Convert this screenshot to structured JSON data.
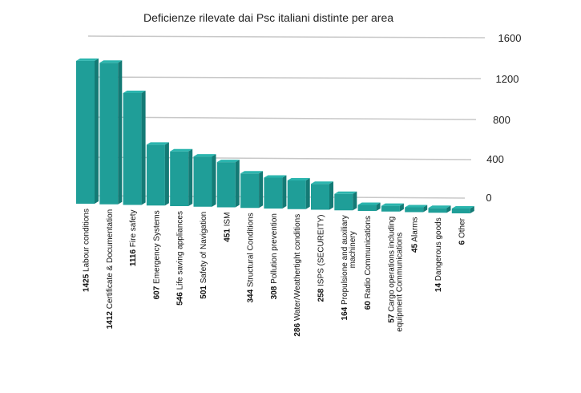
{
  "chart_data": {
    "type": "bar",
    "title": "Deficienze rilevate dai Psc italiani distinte per area",
    "xlabel": "",
    "ylabel": "",
    "ylim": [
      0,
      1600
    ],
    "yticks": [
      "1600",
      "1200",
      "800",
      "400",
      "0"
    ],
    "grid": true,
    "legend": "none",
    "bar_color": "#1f9e98",
    "bar_top_color": "#2bb5ae",
    "bar_side_color": "#147a75",
    "categories": [
      {
        "num": "1425",
        "label": "Labour conditions"
      },
      {
        "num": "1412",
        "label": "Certificate & Documentation"
      },
      {
        "num": "1116",
        "label": "Fire safety"
      },
      {
        "num": "607",
        "label": "Emergency Systems"
      },
      {
        "num": "546",
        "label": "Life saving appliances"
      },
      {
        "num": "501",
        "label": "Safety of Navigation"
      },
      {
        "num": "451",
        "label": "ISM"
      },
      {
        "num": "344",
        "label": "Structural Conditions"
      },
      {
        "num": "308",
        "label": "Pollution prevention"
      },
      {
        "num": "286",
        "label": "Water/Weathertight conditions"
      },
      {
        "num": "258",
        "label": "ISPS (SECUREITY)"
      },
      {
        "num": "164",
        "label": "Propulsione  and  auxiliary",
        "label2": "machinery"
      },
      {
        "num": "60",
        "label": "Radio Communications"
      },
      {
        "num": "57",
        "label": "Cargo operations including",
        "label2": "equipment Communications"
      },
      {
        "num": "45",
        "label": "Alarms"
      },
      {
        "num": "14",
        "label": "Dangerous goods"
      },
      {
        "num": "6",
        "label": "Other"
      }
    ],
    "values": [
      1425,
      1412,
      1116,
      607,
      546,
      501,
      451,
      344,
      308,
      286,
      258,
      164,
      60,
      57,
      45,
      14,
      6
    ]
  }
}
